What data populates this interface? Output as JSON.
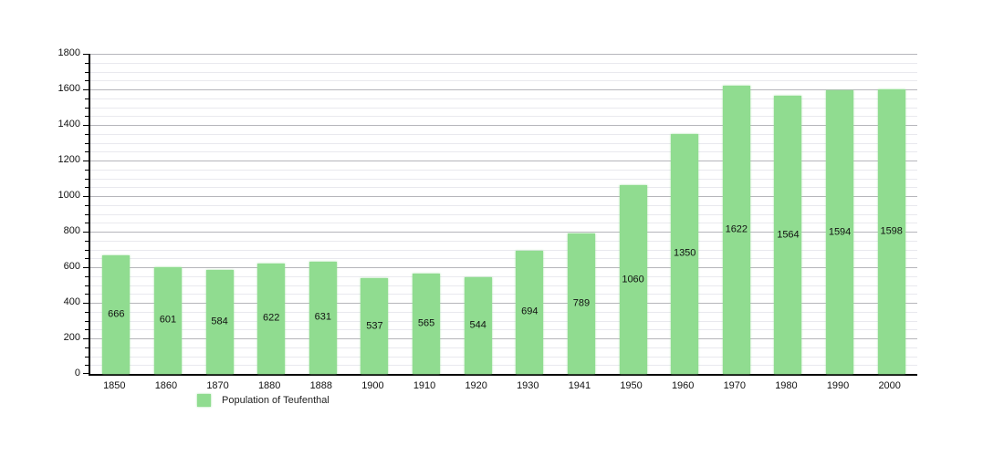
{
  "chart_data": {
    "type": "bar",
    "title": "",
    "categories": [
      "1850",
      "1860",
      "1870",
      "1880",
      "1888",
      "1900",
      "1910",
      "1920",
      "1930",
      "1941",
      "1950",
      "1960",
      "1970",
      "1980",
      "1990",
      "2000"
    ],
    "values": [
      666,
      601,
      584,
      622,
      631,
      537,
      565,
      544,
      694,
      789,
      1060,
      1350,
      1622,
      1564,
      1594,
      1598
    ],
    "legend": "Population of Teufenthal",
    "xlabel": "",
    "ylabel": "",
    "ylim": [
      0,
      1800
    ],
    "ytick_major": 200,
    "ytick_minor": 50,
    "yticks": [
      "0",
      "200",
      "400",
      "600",
      "800",
      "1000",
      "1200",
      "1400",
      "1600",
      "1800"
    ],
    "grid": "on",
    "legend_position": "bottom-left",
    "bar_color": "#90dc90",
    "grid_major_color": "#b6b6bb",
    "grid_minor_color": "#e9e9ee",
    "axis_color": "#000000",
    "text_color": "#111111"
  }
}
